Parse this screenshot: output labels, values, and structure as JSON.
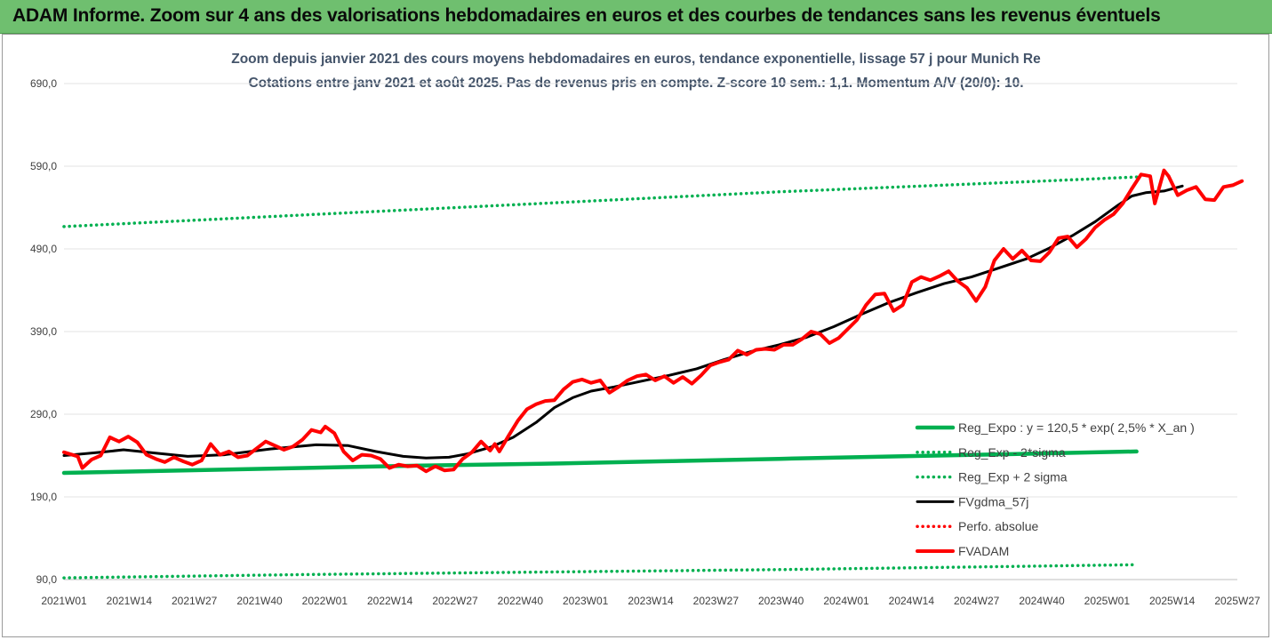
{
  "banner": {
    "title": "ADAM Informe. Zoom sur 4 ans des valorisations hebdomadaires en euros et des courbes de tendances sans les revenus éventuels"
  },
  "chart_data": {
    "type": "line",
    "title": "Zoom depuis janvier 2021 des cours moyens hebdomadaires en euros, tendance exponentielle, lissage 57 j pour Munich Re",
    "subtitle": "Cotations entre janv 2021 et août 2025.  Pas de revenus pris en compte. Z-score 10 sem.: 1,1. Momentum A/V (20/0): 10.",
    "ylim": [
      90,
      690
    ],
    "yticks": [
      "90,0",
      "190,0",
      "290,0",
      "390,0",
      "490,0",
      "590,0",
      "690,0"
    ],
    "xticks": [
      "2021W01",
      "2021W14",
      "2021W27",
      "2021W40",
      "2022W01",
      "2022W14",
      "2022W27",
      "2022W40",
      "2023W01",
      "2023W14",
      "2023W27",
      "2023W40",
      "2024W01",
      "2024W14",
      "2024W27",
      "2024W40",
      "2025W01",
      "2025W14",
      "2025W27"
    ],
    "x_start": "2021W01",
    "legend_position": "right",
    "grid": true,
    "series": [
      {
        "name": "Reg_Expo : y = 120,5 * exp( 2,5% *  X_an )",
        "style": "solid-thick",
        "color": "#00b050",
        "points": [
          [
            0,
            219
          ],
          [
            26,
            222
          ],
          [
            52,
            225
          ],
          [
            78,
            228
          ],
          [
            104,
            230
          ],
          [
            130,
            233
          ],
          [
            156,
            236
          ],
          [
            182,
            239
          ],
          [
            209,
            242
          ],
          [
            234,
            245
          ]
        ]
      },
      {
        "name": "Reg_Exp - 2*sigma",
        "style": "dotted",
        "color": "#00b050",
        "points": [
          [
            0,
            92
          ],
          [
            52,
            96
          ],
          [
            104,
            99
          ],
          [
            156,
            102
          ],
          [
            209,
            106
          ],
          [
            234,
            108
          ]
        ]
      },
      {
        "name": "Reg_Exp + 2 sigma",
        "style": "dotted",
        "color": "#00b050",
        "points": [
          [
            0,
            517
          ],
          [
            52,
            531
          ],
          [
            104,
            545
          ],
          [
            156,
            559
          ],
          [
            209,
            571
          ],
          [
            234,
            577
          ]
        ]
      },
      {
        "name": "FVgdma_57j",
        "style": "solid",
        "color": "#000000",
        "points": [
          [
            0,
            240
          ],
          [
            8,
            244
          ],
          [
            13,
            247
          ],
          [
            20,
            243
          ],
          [
            27,
            239
          ],
          [
            35,
            241
          ],
          [
            45,
            248
          ],
          [
            55,
            253
          ],
          [
            62,
            252
          ],
          [
            68,
            245
          ],
          [
            74,
            239
          ],
          [
            79,
            237
          ],
          [
            84,
            238
          ],
          [
            88,
            242
          ],
          [
            93,
            250
          ],
          [
            98,
            262
          ],
          [
            103,
            280
          ],
          [
            107,
            298
          ],
          [
            111,
            310
          ],
          [
            115,
            318
          ],
          [
            120,
            323
          ],
          [
            126,
            330
          ],
          [
            132,
            337
          ],
          [
            138,
            345
          ],
          [
            144,
            356
          ],
          [
            150,
            366
          ],
          [
            156,
            374
          ],
          [
            162,
            383
          ],
          [
            168,
            396
          ],
          [
            174,
            411
          ],
          [
            180,
            425
          ],
          [
            186,
            437
          ],
          [
            192,
            448
          ],
          [
            198,
            456
          ],
          [
            204,
            467
          ],
          [
            210,
            478
          ],
          [
            215,
            491
          ],
          [
            220,
            506
          ],
          [
            225,
            523
          ],
          [
            230,
            543
          ],
          [
            233,
            554
          ],
          [
            236,
            558
          ],
          [
            240,
            560
          ],
          [
            244,
            566
          ]
        ]
      },
      {
        "name": "Perfo. absolue",
        "style": "dotted",
        "color": "#ff0000",
        "points": []
      },
      {
        "name": "FVADAM",
        "style": "solid-thick",
        "color": "#ff0000",
        "points": [
          [
            0,
            244
          ],
          [
            3,
            239
          ],
          [
            4,
            225
          ],
          [
            6,
            235
          ],
          [
            8,
            240
          ],
          [
            10,
            262
          ],
          [
            12,
            257
          ],
          [
            14,
            263
          ],
          [
            16,
            256
          ],
          [
            18,
            241
          ],
          [
            20,
            236
          ],
          [
            22,
            232
          ],
          [
            24,
            238
          ],
          [
            26,
            233
          ],
          [
            28,
            229
          ],
          [
            30,
            234
          ],
          [
            32,
            254
          ],
          [
            34,
            241
          ],
          [
            36,
            245
          ],
          [
            38,
            238
          ],
          [
            40,
            240
          ],
          [
            44,
            257
          ],
          [
            46,
            252
          ],
          [
            48,
            247
          ],
          [
            50,
            251
          ],
          [
            52,
            259
          ],
          [
            54,
            271
          ],
          [
            56,
            268
          ],
          [
            57,
            275
          ],
          [
            59,
            267
          ],
          [
            61,
            245
          ],
          [
            63,
            234
          ],
          [
            65,
            241
          ],
          [
            67,
            240
          ],
          [
            69,
            236
          ],
          [
            71,
            225
          ],
          [
            73,
            229
          ],
          [
            75,
            227
          ],
          [
            77,
            228
          ],
          [
            79,
            221
          ],
          [
            81,
            227
          ],
          [
            83,
            222
          ],
          [
            85,
            223
          ],
          [
            87,
            236
          ],
          [
            89,
            244
          ],
          [
            91,
            257
          ],
          [
            93,
            246
          ],
          [
            94,
            254
          ],
          [
            95,
            245
          ],
          [
            97,
            264
          ],
          [
            99,
            282
          ],
          [
            101,
            296
          ],
          [
            103,
            302
          ],
          [
            105,
            306
          ],
          [
            107,
            307
          ],
          [
            109,
            320
          ],
          [
            111,
            329
          ],
          [
            113,
            332
          ],
          [
            115,
            328
          ],
          [
            117,
            331
          ],
          [
            119,
            316
          ],
          [
            121,
            323
          ],
          [
            123,
            331
          ],
          [
            125,
            336
          ],
          [
            127,
            338
          ],
          [
            129,
            331
          ],
          [
            131,
            336
          ],
          [
            133,
            328
          ],
          [
            135,
            335
          ],
          [
            137,
            327
          ],
          [
            139,
            337
          ],
          [
            141,
            349
          ],
          [
            143,
            353
          ],
          [
            145,
            356
          ],
          [
            147,
            367
          ],
          [
            149,
            362
          ],
          [
            151,
            368
          ],
          [
            153,
            369
          ],
          [
            155,
            368
          ],
          [
            157,
            374
          ],
          [
            159,
            374
          ],
          [
            161,
            381
          ],
          [
            163,
            390
          ],
          [
            165,
            387
          ],
          [
            167,
            376
          ],
          [
            169,
            382
          ],
          [
            171,
            393
          ],
          [
            173,
            404
          ],
          [
            175,
            422
          ],
          [
            177,
            435
          ],
          [
            179,
            436
          ],
          [
            181,
            415
          ],
          [
            183,
            422
          ],
          [
            185,
            450
          ],
          [
            187,
            456
          ],
          [
            189,
            452
          ],
          [
            191,
            457
          ],
          [
            193,
            463
          ],
          [
            195,
            451
          ],
          [
            197,
            443
          ],
          [
            199,
            427
          ],
          [
            201,
            444
          ],
          [
            203,
            476
          ],
          [
            205,
            490
          ],
          [
            207,
            478
          ],
          [
            209,
            488
          ],
          [
            211,
            476
          ],
          [
            213,
            475
          ],
          [
            215,
            486
          ],
          [
            217,
            503
          ],
          [
            219,
            505
          ],
          [
            221,
            492
          ],
          [
            223,
            502
          ],
          [
            225,
            516
          ],
          [
            227,
            525
          ],
          [
            229,
            532
          ],
          [
            231,
            545
          ],
          [
            233,
            563
          ],
          [
            235,
            580
          ],
          [
            237,
            578
          ],
          [
            238,
            545
          ],
          [
            240,
            585
          ],
          [
            241,
            578
          ],
          [
            243,
            555
          ],
          [
            245,
            561
          ],
          [
            247,
            565
          ],
          [
            249,
            550
          ],
          [
            251,
            549
          ],
          [
            253,
            565
          ],
          [
            255,
            567
          ],
          [
            257,
            572
          ]
        ]
      }
    ]
  }
}
